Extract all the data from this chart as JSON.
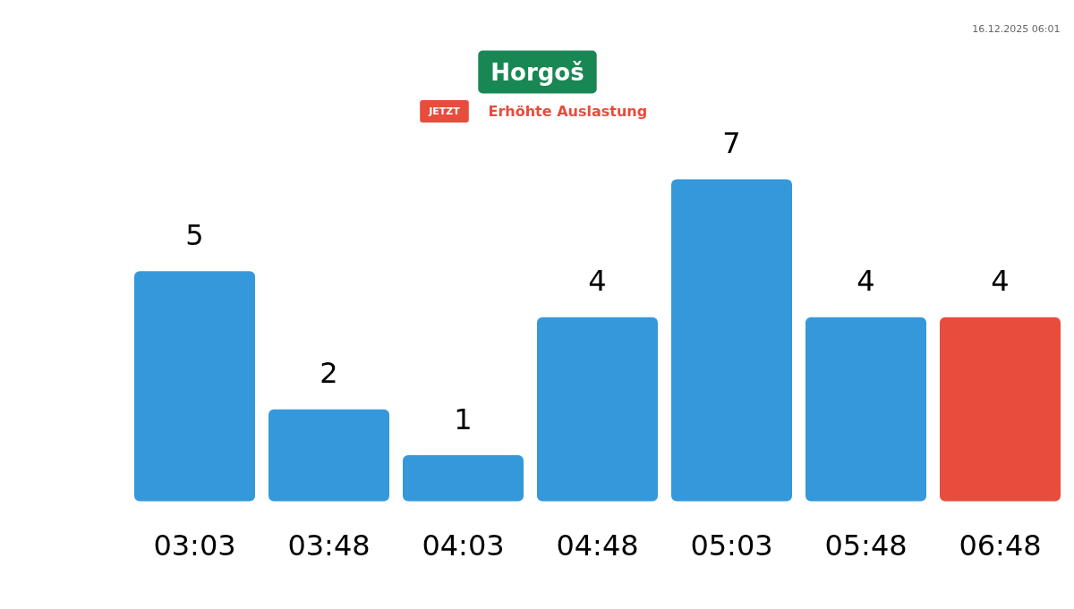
{
  "chart_data": {
    "type": "bar",
    "title": "Horgoš",
    "subtitle": "Erhöhte Auslastung",
    "annotations": [
      "JETZT",
      "16.12.2025 06:01"
    ],
    "categories": [
      "03:03",
      "03:48",
      "04:03",
      "04:48",
      "05:03",
      "05:48",
      "06:48"
    ],
    "values": [
      5,
      2,
      1,
      4,
      7,
      4,
      4
    ],
    "colors": [
      "#3498db",
      "#3498db",
      "#3498db",
      "#3498db",
      "#3498db",
      "#3498db",
      "#e74c3c"
    ],
    "data_labels": true
  }
}
